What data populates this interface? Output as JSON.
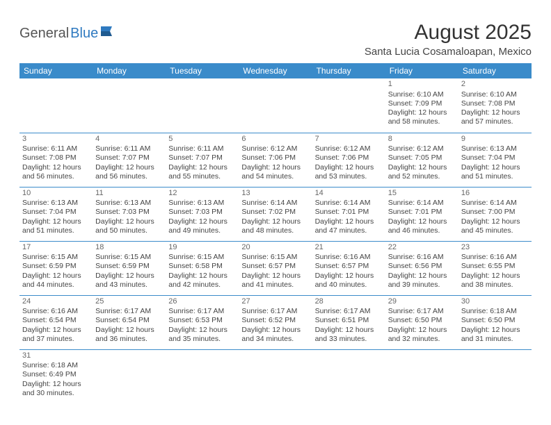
{
  "logo": {
    "general": "General",
    "blue": "Blue"
  },
  "title": "August 2025",
  "location": "Santa Lucia Cosamaloapan, Mexico",
  "colors": {
    "header_bg": "#3a8bca",
    "header_fg": "#ffffff",
    "border": "#3a8bca",
    "text": "#444444",
    "logo_blue": "#2f7ac0"
  },
  "weekdays": [
    "Sunday",
    "Monday",
    "Tuesday",
    "Wednesday",
    "Thursday",
    "Friday",
    "Saturday"
  ],
  "weeks": [
    [
      null,
      null,
      null,
      null,
      null,
      {
        "d": "1",
        "sr": "6:10 AM",
        "ss": "7:09 PM",
        "dl": "12 hours and 58 minutes."
      },
      {
        "d": "2",
        "sr": "6:10 AM",
        "ss": "7:08 PM",
        "dl": "12 hours and 57 minutes."
      }
    ],
    [
      {
        "d": "3",
        "sr": "6:11 AM",
        "ss": "7:08 PM",
        "dl": "12 hours and 56 minutes."
      },
      {
        "d": "4",
        "sr": "6:11 AM",
        "ss": "7:07 PM",
        "dl": "12 hours and 56 minutes."
      },
      {
        "d": "5",
        "sr": "6:11 AM",
        "ss": "7:07 PM",
        "dl": "12 hours and 55 minutes."
      },
      {
        "d": "6",
        "sr": "6:12 AM",
        "ss": "7:06 PM",
        "dl": "12 hours and 54 minutes."
      },
      {
        "d": "7",
        "sr": "6:12 AM",
        "ss": "7:06 PM",
        "dl": "12 hours and 53 minutes."
      },
      {
        "d": "8",
        "sr": "6:12 AM",
        "ss": "7:05 PM",
        "dl": "12 hours and 52 minutes."
      },
      {
        "d": "9",
        "sr": "6:13 AM",
        "ss": "7:04 PM",
        "dl": "12 hours and 51 minutes."
      }
    ],
    [
      {
        "d": "10",
        "sr": "6:13 AM",
        "ss": "7:04 PM",
        "dl": "12 hours and 51 minutes."
      },
      {
        "d": "11",
        "sr": "6:13 AM",
        "ss": "7:03 PM",
        "dl": "12 hours and 50 minutes."
      },
      {
        "d": "12",
        "sr": "6:13 AM",
        "ss": "7:03 PM",
        "dl": "12 hours and 49 minutes."
      },
      {
        "d": "13",
        "sr": "6:14 AM",
        "ss": "7:02 PM",
        "dl": "12 hours and 48 minutes."
      },
      {
        "d": "14",
        "sr": "6:14 AM",
        "ss": "7:01 PM",
        "dl": "12 hours and 47 minutes."
      },
      {
        "d": "15",
        "sr": "6:14 AM",
        "ss": "7:01 PM",
        "dl": "12 hours and 46 minutes."
      },
      {
        "d": "16",
        "sr": "6:14 AM",
        "ss": "7:00 PM",
        "dl": "12 hours and 45 minutes."
      }
    ],
    [
      {
        "d": "17",
        "sr": "6:15 AM",
        "ss": "6:59 PM",
        "dl": "12 hours and 44 minutes."
      },
      {
        "d": "18",
        "sr": "6:15 AM",
        "ss": "6:59 PM",
        "dl": "12 hours and 43 minutes."
      },
      {
        "d": "19",
        "sr": "6:15 AM",
        "ss": "6:58 PM",
        "dl": "12 hours and 42 minutes."
      },
      {
        "d": "20",
        "sr": "6:15 AM",
        "ss": "6:57 PM",
        "dl": "12 hours and 41 minutes."
      },
      {
        "d": "21",
        "sr": "6:16 AM",
        "ss": "6:57 PM",
        "dl": "12 hours and 40 minutes."
      },
      {
        "d": "22",
        "sr": "6:16 AM",
        "ss": "6:56 PM",
        "dl": "12 hours and 39 minutes."
      },
      {
        "d": "23",
        "sr": "6:16 AM",
        "ss": "6:55 PM",
        "dl": "12 hours and 38 minutes."
      }
    ],
    [
      {
        "d": "24",
        "sr": "6:16 AM",
        "ss": "6:54 PM",
        "dl": "12 hours and 37 minutes."
      },
      {
        "d": "25",
        "sr": "6:17 AM",
        "ss": "6:54 PM",
        "dl": "12 hours and 36 minutes."
      },
      {
        "d": "26",
        "sr": "6:17 AM",
        "ss": "6:53 PM",
        "dl": "12 hours and 35 minutes."
      },
      {
        "d": "27",
        "sr": "6:17 AM",
        "ss": "6:52 PM",
        "dl": "12 hours and 34 minutes."
      },
      {
        "d": "28",
        "sr": "6:17 AM",
        "ss": "6:51 PM",
        "dl": "12 hours and 33 minutes."
      },
      {
        "d": "29",
        "sr": "6:17 AM",
        "ss": "6:50 PM",
        "dl": "12 hours and 32 minutes."
      },
      {
        "d": "30",
        "sr": "6:18 AM",
        "ss": "6:50 PM",
        "dl": "12 hours and 31 minutes."
      }
    ],
    [
      {
        "d": "31",
        "sr": "6:18 AM",
        "ss": "6:49 PM",
        "dl": "12 hours and 30 minutes."
      },
      null,
      null,
      null,
      null,
      null,
      null
    ]
  ],
  "labels": {
    "sunrise": "Sunrise: ",
    "sunset": "Sunset: ",
    "daylight": "Daylight: "
  }
}
